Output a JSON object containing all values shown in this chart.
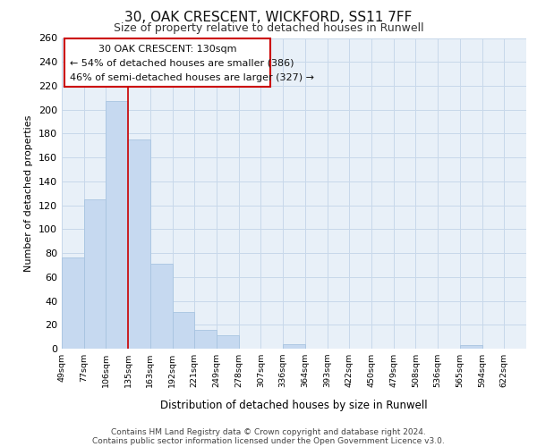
{
  "title1": "30, OAK CRESCENT, WICKFORD, SS11 7FF",
  "title2": "Size of property relative to detached houses in Runwell",
  "xlabel": "Distribution of detached houses by size in Runwell",
  "ylabel": "Number of detached properties",
  "bar_labels": [
    "49sqm",
    "77sqm",
    "106sqm",
    "135sqm",
    "163sqm",
    "192sqm",
    "221sqm",
    "249sqm",
    "278sqm",
    "307sqm",
    "336sqm",
    "364sqm",
    "393sqm",
    "422sqm",
    "450sqm",
    "479sqm",
    "508sqm",
    "536sqm",
    "565sqm",
    "594sqm",
    "622sqm"
  ],
  "bar_values": [
    76,
    125,
    207,
    175,
    71,
    31,
    16,
    11,
    0,
    0,
    4,
    0,
    0,
    0,
    0,
    0,
    0,
    0,
    3,
    0,
    0
  ],
  "bar_color": "#c6d9f0",
  "bar_edge_color": "#a8c4e0",
  "vline_x": 3,
  "vline_color": "#cc0000",
  "annotation_line1": "30 OAK CRESCENT: 130sqm",
  "annotation_line2": "← 54% of detached houses are smaller (386)",
  "annotation_line3": "46% of semi-detached houses are larger (327) →",
  "ylim": [
    0,
    260
  ],
  "yticks": [
    0,
    20,
    40,
    60,
    80,
    100,
    120,
    140,
    160,
    180,
    200,
    220,
    240,
    260
  ],
  "footer_line1": "Contains HM Land Registry data © Crown copyright and database right 2024.",
  "footer_line2": "Contains public sector information licensed under the Open Government Licence v3.0.",
  "grid_color": "#c8d8ea",
  "background_color": "#e8f0f8"
}
